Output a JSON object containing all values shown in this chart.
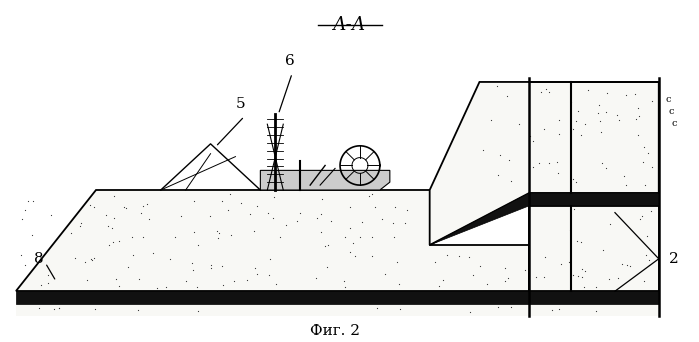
{
  "title": "А-А",
  "caption": "Фиг. 2",
  "bg_color": "#ffffff",
  "label_5": "5",
  "label_6": "6",
  "label_8": "8",
  "label_2": "2",
  "dot_color": "#333333",
  "coal_color": "#111111",
  "fill_color": "#f8f8f5",
  "line_color": "#000000"
}
